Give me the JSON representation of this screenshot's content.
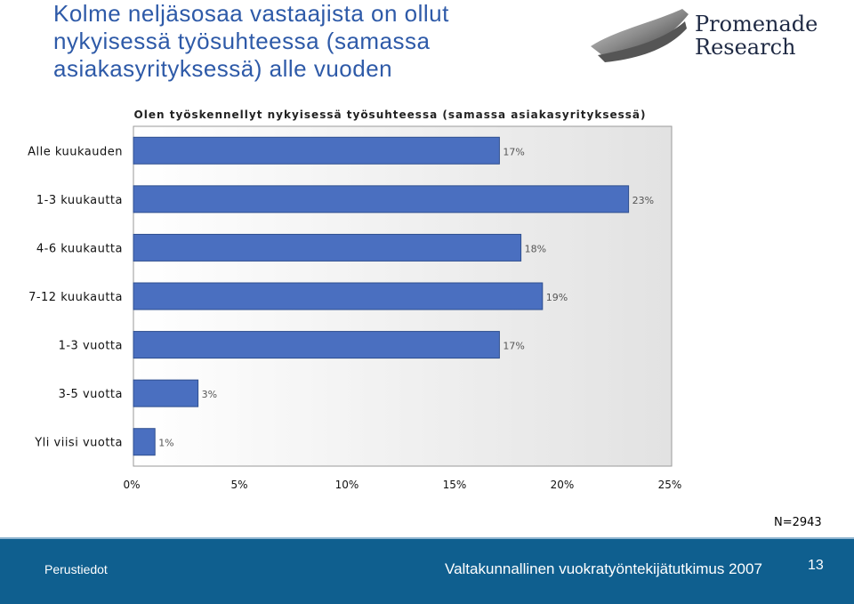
{
  "title_lines": [
    "Kolme neljäsosaa vastaajista on ollut",
    "nykyisessä työsuhteessa  (samassa",
    "asiakasyrityksessä) alle vuoden"
  ],
  "logo": {
    "line1": "Promenade",
    "line2": "Research"
  },
  "chart_data": {
    "type": "bar",
    "orientation": "horizontal",
    "title": "Olen työskennellyt nykyisessä työsuhteessa (samassa asiakasyrityksessä)",
    "categories": [
      "Alle kuukauden",
      "1-3 kuukautta",
      "4-6 kuukautta",
      "7-12 kuukautta",
      "1-3 vuotta",
      "3-5 vuotta",
      "Yli viisi vuotta"
    ],
    "values": [
      17,
      23,
      18,
      19,
      17,
      3,
      1
    ],
    "value_labels": [
      "17%",
      "23%",
      "18%",
      "19%",
      "17%",
      "3%",
      "1%"
    ],
    "xlim": [
      0,
      25
    ],
    "x_ticks": [
      "0%",
      "5%",
      "10%",
      "15%",
      "20%",
      "25%"
    ],
    "xlabel": "",
    "ylabel": "",
    "grid": false,
    "bar_color": "#4a6fc0",
    "note": "N=2943"
  },
  "footer": {
    "left": "Perustiedot",
    "center": "Valtakunnallinen vuokratyöntekijätutkimus 2007",
    "page": "13"
  },
  "colors": {
    "title": "#2e5aa8",
    "footer_bg": "#0f5f8f",
    "bar": "#4a6fc0"
  }
}
